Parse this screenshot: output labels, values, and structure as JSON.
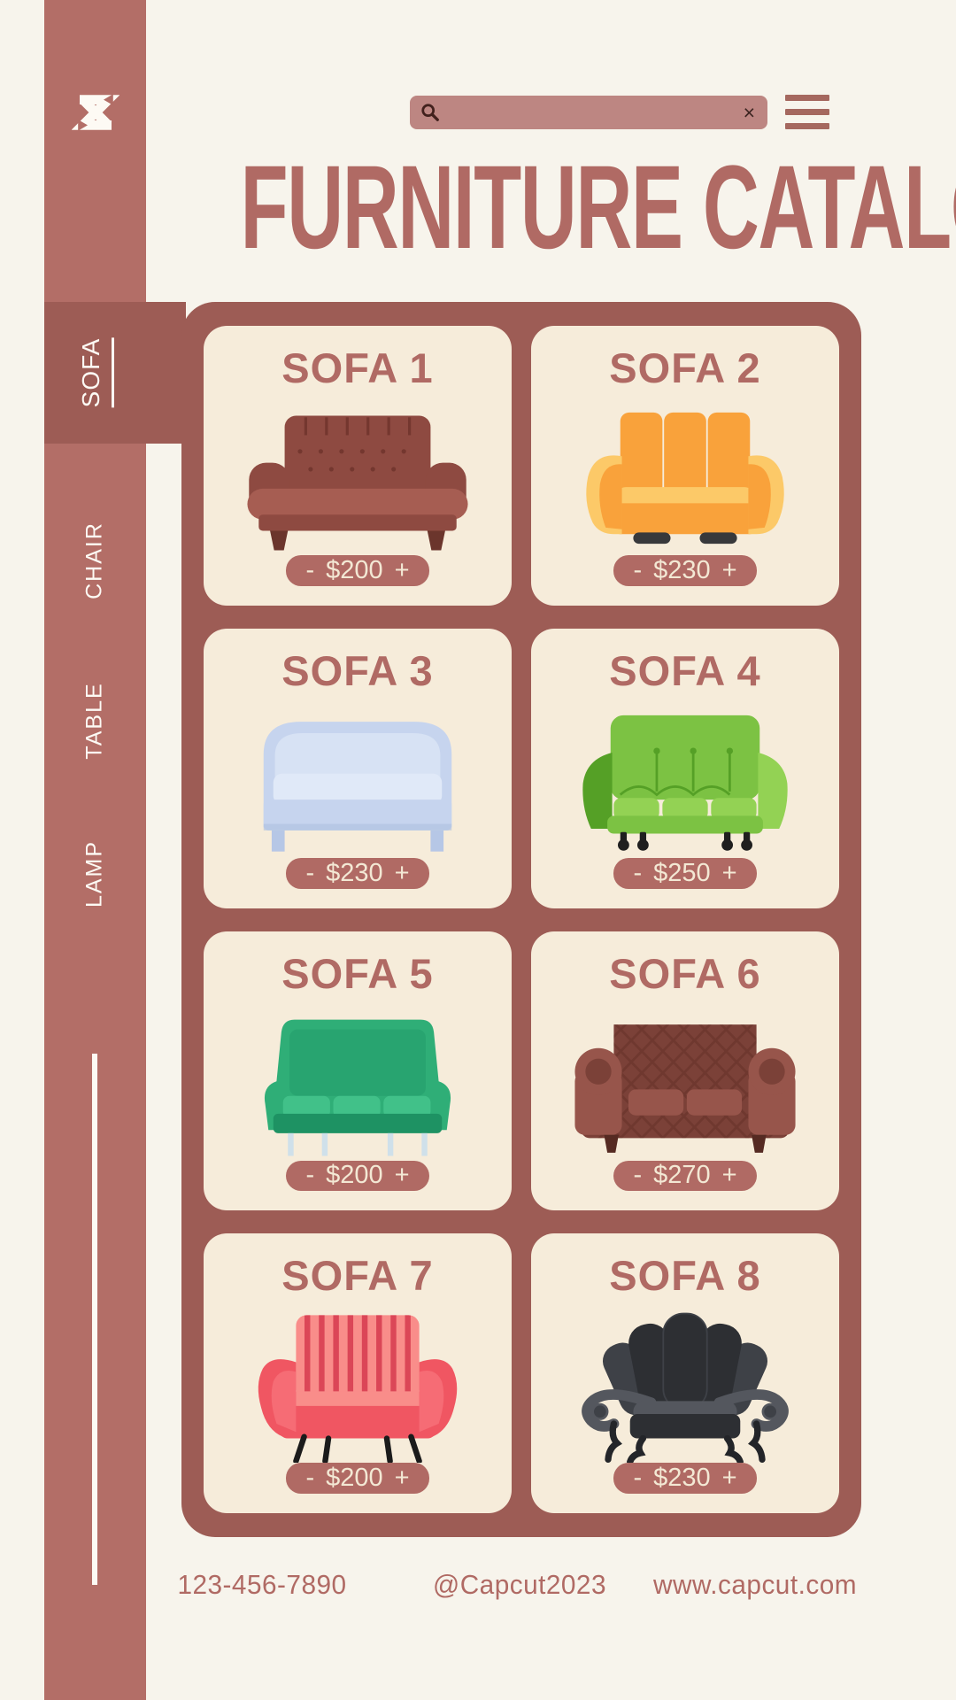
{
  "theme": {
    "page": "#f7f4ec",
    "sidebar": "#b36e67",
    "container": "#9d5c55",
    "card": "#f6ecda",
    "accent": "#b06a64",
    "search": "#bd8682",
    "hamburger": "#a5685f",
    "cream_text": "#f3e8d4",
    "dark_icon": "#42211d",
    "white": "#fdfaf4"
  },
  "sidebar": {
    "logo_icon": "capcut-logo",
    "items": [
      {
        "label": "SOFA",
        "active": true
      },
      {
        "label": "CHAIR",
        "active": false
      },
      {
        "label": "TABLE",
        "active": false
      },
      {
        "label": "LAMP",
        "active": false
      }
    ]
  },
  "topbar": {
    "search": {
      "value": "",
      "placeholder": "",
      "icon": "magnifier-icon",
      "clear_icon": "×"
    },
    "menu_icon": "hamburger-icon"
  },
  "header": {
    "title": "FURNITURE CATALOG"
  },
  "catalog": {
    "stepper": {
      "minus": "-",
      "plus": "+"
    },
    "products": [
      {
        "name": "SOFA 1",
        "price": "$200",
        "variant": "chesterfield",
        "colors": {
          "a": "#8e4a41",
          "b": "#a65d52",
          "c": "#74372f",
          "d": "#6b352c"
        }
      },
      {
        "name": "SOFA 2",
        "price": "$230",
        "variant": "modern",
        "colors": {
          "a": "#f9a23b",
          "b": "#fcc968",
          "c": "#ef8c28",
          "d": "#38393b"
        }
      },
      {
        "name": "SOFA 3",
        "price": "$230",
        "variant": "simple",
        "colors": {
          "a": "#c6d4ee",
          "b": "#e0e9f8",
          "c": "#aebfe0",
          "d": "#b6c7e6"
        }
      },
      {
        "name": "SOFA 4",
        "price": "$250",
        "variant": "tuftback",
        "colors": {
          "a": "#7cc243",
          "b": "#93d254",
          "c": "#55a026",
          "d": "#1f1f1f"
        }
      },
      {
        "name": "SOFA 5",
        "price": "$200",
        "variant": "midcentury",
        "colors": {
          "a": "#2fae77",
          "b": "#41c189",
          "c": "#1e9263",
          "d": "#cfe0ea"
        }
      },
      {
        "name": "SOFA 6",
        "price": "$270",
        "variant": "chesterfield2",
        "colors": {
          "a": "#7b4138",
          "b": "#97554b",
          "c": "#643027",
          "d": "#552a22"
        }
      },
      {
        "name": "SOFA 7",
        "price": "$200",
        "variant": "striped",
        "colors": {
          "a": "#f05662",
          "b": "#f98d8a",
          "c": "#d63a4e",
          "d": "#1b1b1b",
          "e": "#f77079"
        }
      },
      {
        "name": "SOFA 8",
        "price": "$230",
        "variant": "fanback",
        "colors": {
          "a": "#2d2f33",
          "b": "#3e4147",
          "c": "#54575e",
          "d": "#232529"
        }
      }
    ]
  },
  "footer": {
    "phone": "123-456-7890",
    "handle": "@Capcut2023",
    "website": "www.capcut.com"
  }
}
